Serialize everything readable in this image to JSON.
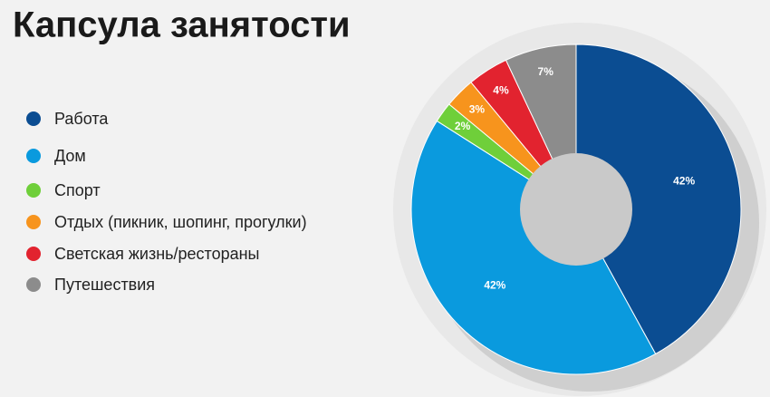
{
  "chart_data": {
    "type": "donut",
    "title": "Капсула занятости",
    "categories": [
      "Работа",
      "Дом",
      "Спорт",
      "Отдых (пикник, шопинг, прогулки)",
      "Светская жизнь/рестораны",
      "Путешествия"
    ],
    "values": [
      42,
      42,
      2,
      3,
      4,
      7
    ],
    "value_labels": [
      "42%",
      "42%",
      "2%",
      "3%",
      "4%",
      "7%"
    ],
    "colors": [
      "#0b4d92",
      "#0a9ade",
      "#6fcf3a",
      "#f7941d",
      "#e2232f",
      "#8c8c8c"
    ],
    "legend": "left"
  }
}
